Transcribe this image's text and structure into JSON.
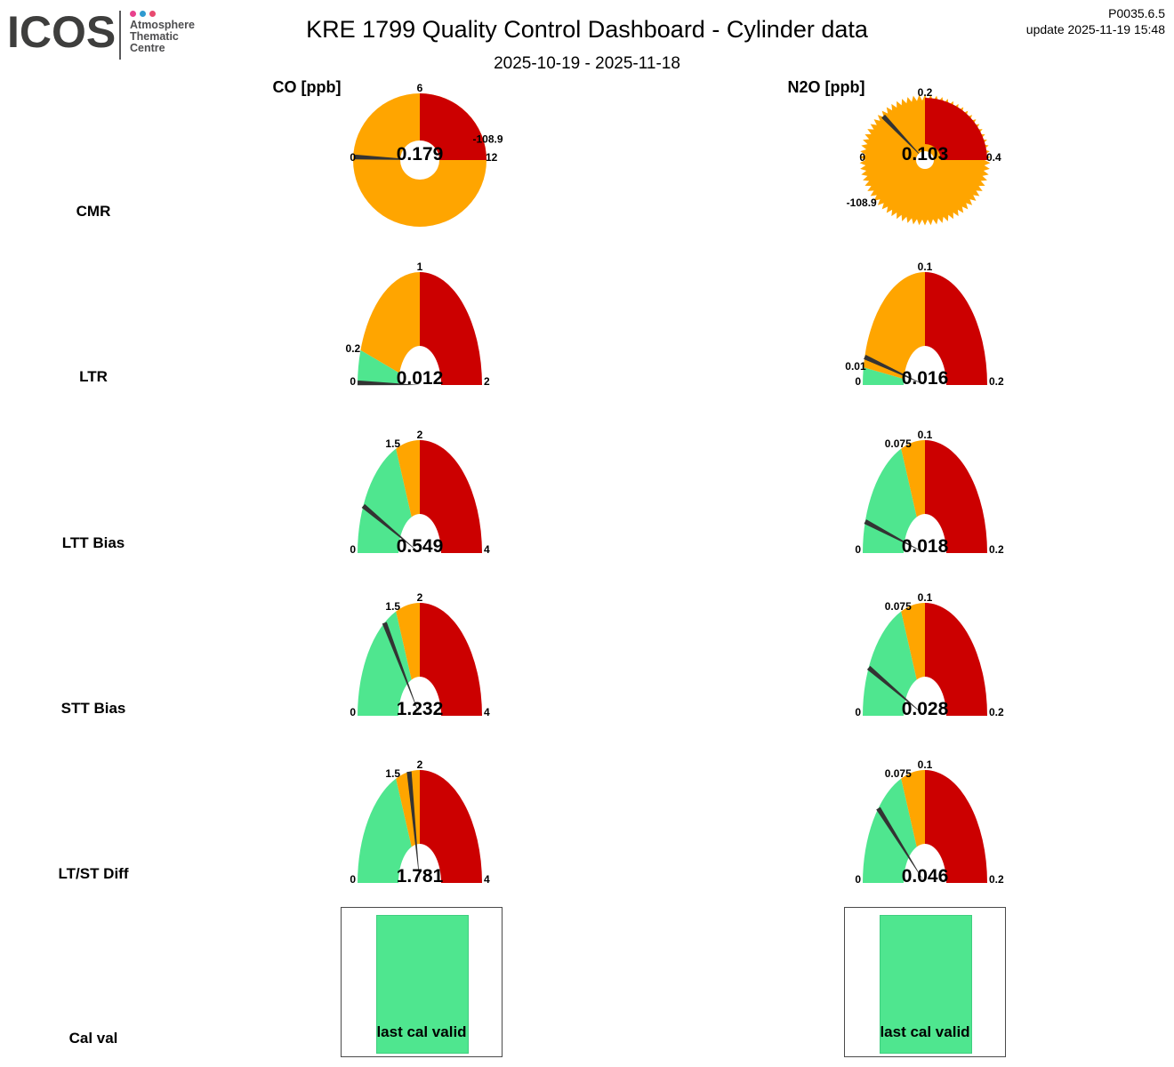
{
  "header": {
    "logo": {
      "text": "ICOS",
      "dot_colors": [
        "#e8418c",
        "#2f9ad0",
        "#e84a6f"
      ],
      "lines": [
        "Atmosphere",
        "Thematic",
        "Centre"
      ]
    },
    "title": "KRE 1799 Quality Control Dashboard - Cylinder data",
    "subtitle": "2025-10-19 - 2025-11-18",
    "version": "P0035.6.5",
    "update_line": "update  2025-11-19 15:48"
  },
  "columns": [
    {
      "key": "CO",
      "label": "CO [ppb]"
    },
    {
      "key": "N2O",
      "label": "N2O [ppb]"
    }
  ],
  "rows": [
    {
      "label": "CMR"
    },
    {
      "label": "LTR"
    },
    {
      "label": "LTT Bias"
    },
    {
      "label": "STT Bias"
    },
    {
      "label": "LT/ST Diff"
    },
    {
      "label": "Cal val"
    }
  ],
  "colors": {
    "green": "#4fe68f",
    "orange": "#ffa500",
    "red": "#cc0000",
    "needle": "#333333"
  },
  "cal_val": {
    "label": "last cal valid",
    "status_color": "green"
  },
  "chart_data": [
    {
      "type": "gauge",
      "gauge": "full-circle",
      "metric": "CMR",
      "species": "CO",
      "unit": "ppb",
      "min": 0,
      "max": 12,
      "value": 0.179,
      "value_label": "0.179",
      "red_from": 6,
      "red_to": 12,
      "ticks": [
        {
          "value": 0,
          "label": "0"
        },
        {
          "value": 6,
          "label": "6"
        },
        {
          "value": 12,
          "label": "12"
        }
      ],
      "extra_labels": [
        {
          "label": "-108.9",
          "angle_deg": 17,
          "radius": 80
        }
      ],
      "style": {
        "radius": 75,
        "hole": 22,
        "red_inner": 22,
        "jagged": false
      }
    },
    {
      "type": "gauge",
      "gauge": "full-circle",
      "metric": "CMR",
      "species": "N2O",
      "unit": "ppb",
      "min": 0,
      "max": 0.4,
      "value": 0.103,
      "value_label": "0.103",
      "red_from": 0.2,
      "red_to": 0.4,
      "ticks": [
        {
          "value": 0,
          "label": "0"
        },
        {
          "value": 0.2,
          "label": "0.2"
        },
        {
          "value": 0.4,
          "label": "0.4"
        }
      ],
      "extra_labels": [
        {
          "label": "-108.9",
          "angle_deg": 214,
          "radius": 86
        }
      ],
      "style": {
        "radius": 70,
        "hole": 10,
        "red_inner": 18,
        "jagged": true
      }
    },
    {
      "type": "gauge",
      "gauge": "arch",
      "metric": "LTR",
      "species": "CO",
      "unit": "ppb",
      "min": 0,
      "max": 2,
      "value": 0.012,
      "value_label": "0.012",
      "bands": [
        {
          "to": 0.2,
          "color": "green"
        },
        {
          "to": 1,
          "color": "orange"
        },
        {
          "to": 2,
          "color": "red"
        }
      ],
      "ticks": [
        {
          "value": 0,
          "label": "0"
        },
        {
          "value": 0.2,
          "label": "0.2"
        },
        {
          "value": 1,
          "label": "1"
        },
        {
          "value": 2,
          "label": "2"
        }
      ]
    },
    {
      "type": "gauge",
      "gauge": "arch",
      "metric": "LTR",
      "species": "N2O",
      "unit": "ppb",
      "min": 0,
      "max": 0.2,
      "value": 0.016,
      "value_label": "0.016",
      "bands": [
        {
          "to": 0.01,
          "color": "green"
        },
        {
          "to": 0.1,
          "color": "orange"
        },
        {
          "to": 0.2,
          "color": "red"
        }
      ],
      "ticks": [
        {
          "value": 0,
          "label": "0"
        },
        {
          "value": 0.01,
          "label": "0.01"
        },
        {
          "value": 0.1,
          "label": "0.1"
        },
        {
          "value": 0.2,
          "label": "0.2"
        }
      ]
    },
    {
      "type": "gauge",
      "gauge": "arch",
      "metric": "LTT Bias",
      "species": "CO",
      "unit": "ppb",
      "min": 0,
      "max": 4,
      "value": 0.549,
      "value_label": "0.549",
      "bands": [
        {
          "to": 1.5,
          "color": "green"
        },
        {
          "to": 2,
          "color": "orange"
        },
        {
          "to": 4,
          "color": "red"
        }
      ],
      "ticks": [
        {
          "value": 0,
          "label": "0"
        },
        {
          "value": 1.5,
          "label": "1.5"
        },
        {
          "value": 2,
          "label": "2"
        },
        {
          "value": 4,
          "label": "4"
        }
      ]
    },
    {
      "type": "gauge",
      "gauge": "arch",
      "metric": "LTT Bias",
      "species": "N2O",
      "unit": "ppb",
      "min": 0,
      "max": 0.2,
      "value": 0.018,
      "value_label": "0.018",
      "bands": [
        {
          "to": 0.075,
          "color": "green"
        },
        {
          "to": 0.1,
          "color": "orange"
        },
        {
          "to": 0.2,
          "color": "red"
        }
      ],
      "ticks": [
        {
          "value": 0,
          "label": "0"
        },
        {
          "value": 0.075,
          "label": "0.075"
        },
        {
          "value": 0.1,
          "label": "0.1"
        },
        {
          "value": 0.2,
          "label": "0.2"
        }
      ]
    },
    {
      "type": "gauge",
      "gauge": "arch",
      "metric": "STT Bias",
      "species": "CO",
      "unit": "ppb",
      "min": 0,
      "max": 4,
      "value": 1.232,
      "value_label": "1.232",
      "bands": [
        {
          "to": 1.5,
          "color": "green"
        },
        {
          "to": 2,
          "color": "orange"
        },
        {
          "to": 4,
          "color": "red"
        }
      ],
      "ticks": [
        {
          "value": 0,
          "label": "0"
        },
        {
          "value": 1.5,
          "label": "1.5"
        },
        {
          "value": 2,
          "label": "2"
        },
        {
          "value": 4,
          "label": "4"
        }
      ]
    },
    {
      "type": "gauge",
      "gauge": "arch",
      "metric": "STT Bias",
      "species": "N2O",
      "unit": "ppb",
      "min": 0,
      "max": 0.2,
      "value": 0.028,
      "value_label": "0.028",
      "bands": [
        {
          "to": 0.075,
          "color": "green"
        },
        {
          "to": 0.1,
          "color": "orange"
        },
        {
          "to": 0.2,
          "color": "red"
        }
      ],
      "ticks": [
        {
          "value": 0,
          "label": "0"
        },
        {
          "value": 0.075,
          "label": "0.075"
        },
        {
          "value": 0.1,
          "label": "0.1"
        },
        {
          "value": 0.2,
          "label": "0.2"
        }
      ]
    },
    {
      "type": "gauge",
      "gauge": "arch",
      "metric": "LT/ST Diff",
      "species": "CO",
      "unit": "ppb",
      "min": 0,
      "max": 4,
      "value": 1.781,
      "value_label": "1.781",
      "bands": [
        {
          "to": 1.5,
          "color": "green"
        },
        {
          "to": 2,
          "color": "orange"
        },
        {
          "to": 4,
          "color": "red"
        }
      ],
      "ticks": [
        {
          "value": 0,
          "label": "0"
        },
        {
          "value": 1.5,
          "label": "1.5"
        },
        {
          "value": 2,
          "label": "2"
        },
        {
          "value": 4,
          "label": "4"
        }
      ]
    },
    {
      "type": "gauge",
      "gauge": "arch",
      "metric": "LT/ST Diff",
      "species": "N2O",
      "unit": "ppb",
      "min": 0,
      "max": 0.2,
      "value": 0.046,
      "value_label": "0.046",
      "bands": [
        {
          "to": 0.075,
          "color": "green"
        },
        {
          "to": 0.1,
          "color": "orange"
        },
        {
          "to": 0.2,
          "color": "red"
        }
      ],
      "ticks": [
        {
          "value": 0,
          "label": "0"
        },
        {
          "value": 0.075,
          "label": "0.075"
        },
        {
          "value": 0.1,
          "label": "0.1"
        },
        {
          "value": 0.2,
          "label": "0.2"
        }
      ]
    }
  ]
}
